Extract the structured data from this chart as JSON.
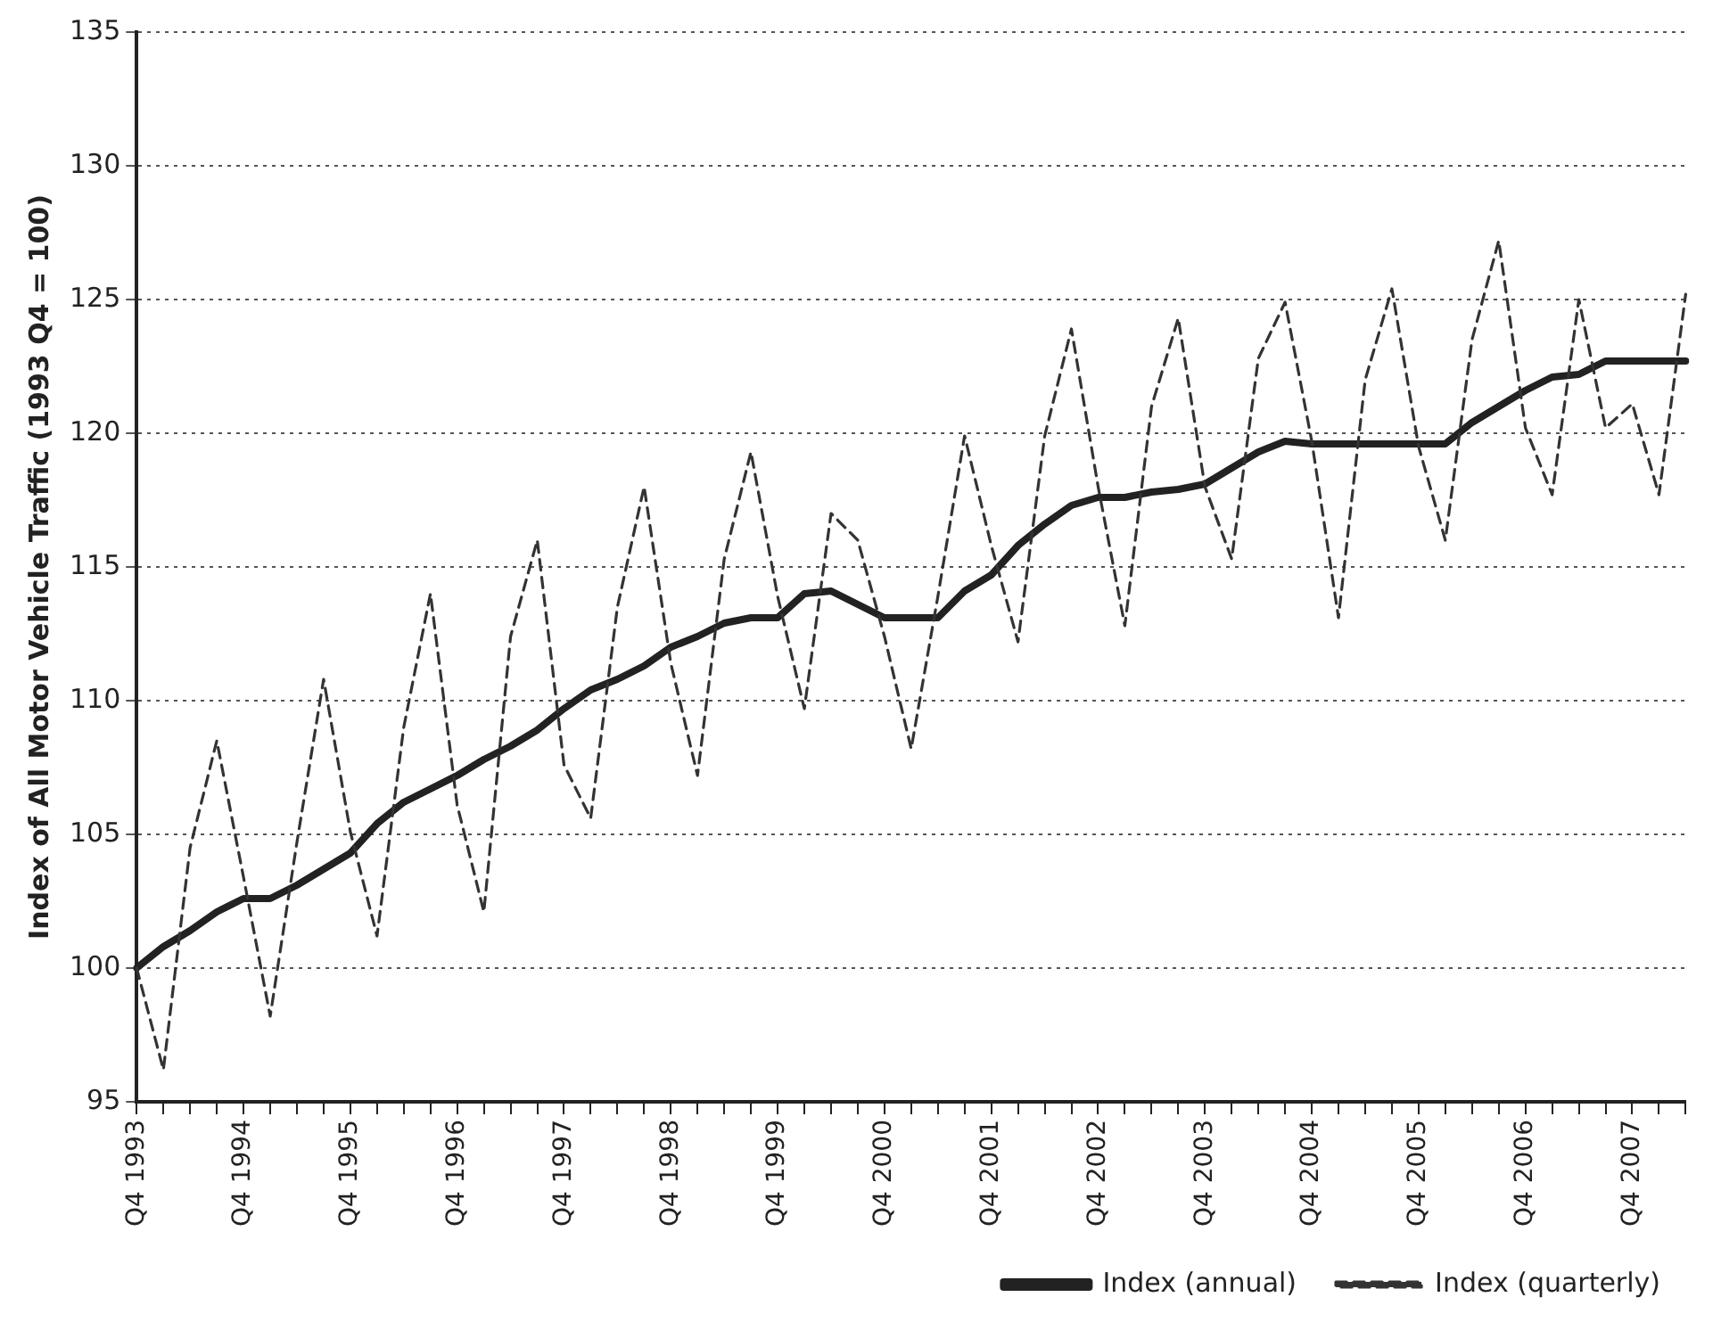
{
  "chart_data": {
    "type": "line",
    "ylabel": "Index of All Motor Vehicle Traffic (1993 Q4 = 100)",
    "categories": [
      "Q4 1993",
      null,
      null,
      null,
      "Q4 1994",
      null,
      null,
      null,
      "Q4 1995",
      null,
      null,
      null,
      "Q4 1996",
      null,
      null,
      null,
      "Q4 1997",
      null,
      null,
      null,
      "Q4 1998",
      null,
      null,
      null,
      "Q4 1999",
      null,
      null,
      null,
      "Q4 2000",
      null,
      null,
      null,
      "Q4 2001",
      null,
      null,
      null,
      "Q4 2002",
      null,
      null,
      null,
      "Q4 2003",
      null,
      null,
      null,
      "Q4 2004",
      null,
      null,
      null,
      "Q4 2005",
      null,
      null,
      null,
      "Q4 2006",
      null,
      null,
      null,
      "Q4 2007",
      null,
      null
    ],
    "series": [
      {
        "name": "Index (annual)",
        "color": "#222222",
        "line_style": "solid",
        "values": [
          100,
          100.8,
          101.4,
          102.1,
          102.6,
          102.6,
          103.1,
          103.7,
          104.3,
          105.4,
          106.2,
          106.7,
          107.2,
          107.8,
          108.3,
          108.9,
          109.7,
          110.4,
          110.8,
          111.3,
          112,
          112.4,
          112.9,
          113.1,
          113.1,
          114,
          114.1,
          113.6,
          113.1,
          113.1,
          113.1,
          114.1,
          114.7,
          115.8,
          116.6,
          117.3,
          117.6,
          117.6,
          117.8,
          117.9,
          118.1,
          118.7,
          119.3,
          119.7,
          119.6,
          119.6,
          119.6,
          119.6,
          119.6,
          119.6,
          120.4,
          121,
          121.6,
          122.1,
          122.2,
          122.7,
          122.7,
          122.7,
          122.7
        ]
      },
      {
        "name": "Index (quarterly)",
        "color": "#333333",
        "line_style": "dashed",
        "values": [
          100,
          96.2,
          104.5,
          108.5,
          103.4,
          98.2,
          104.7,
          110.8,
          105.1,
          101.2,
          109,
          114,
          106.1,
          102.1,
          112.4,
          116,
          107.6,
          105.6,
          113.5,
          118,
          111.4,
          107.2,
          115.3,
          119.3,
          113.9,
          109.7,
          117,
          116,
          112.4,
          108.2,
          113.9,
          119.9,
          115.8,
          112.2,
          119.9,
          123.9,
          118,
          112.8,
          121,
          124.3,
          118,
          115.3,
          122.8,
          124.9,
          119.7,
          113.1,
          122,
          125.4,
          119.5,
          116,
          123.5,
          127.2,
          120.2,
          117.7,
          125,
          120.2,
          121.1,
          117.7,
          125.2
        ]
      }
    ],
    "ylim": [
      95,
      135
    ],
    "yticks": [
      95,
      100,
      105,
      110,
      115,
      120,
      125,
      130,
      135
    ],
    "grid": "y",
    "legend": "bottom"
  }
}
